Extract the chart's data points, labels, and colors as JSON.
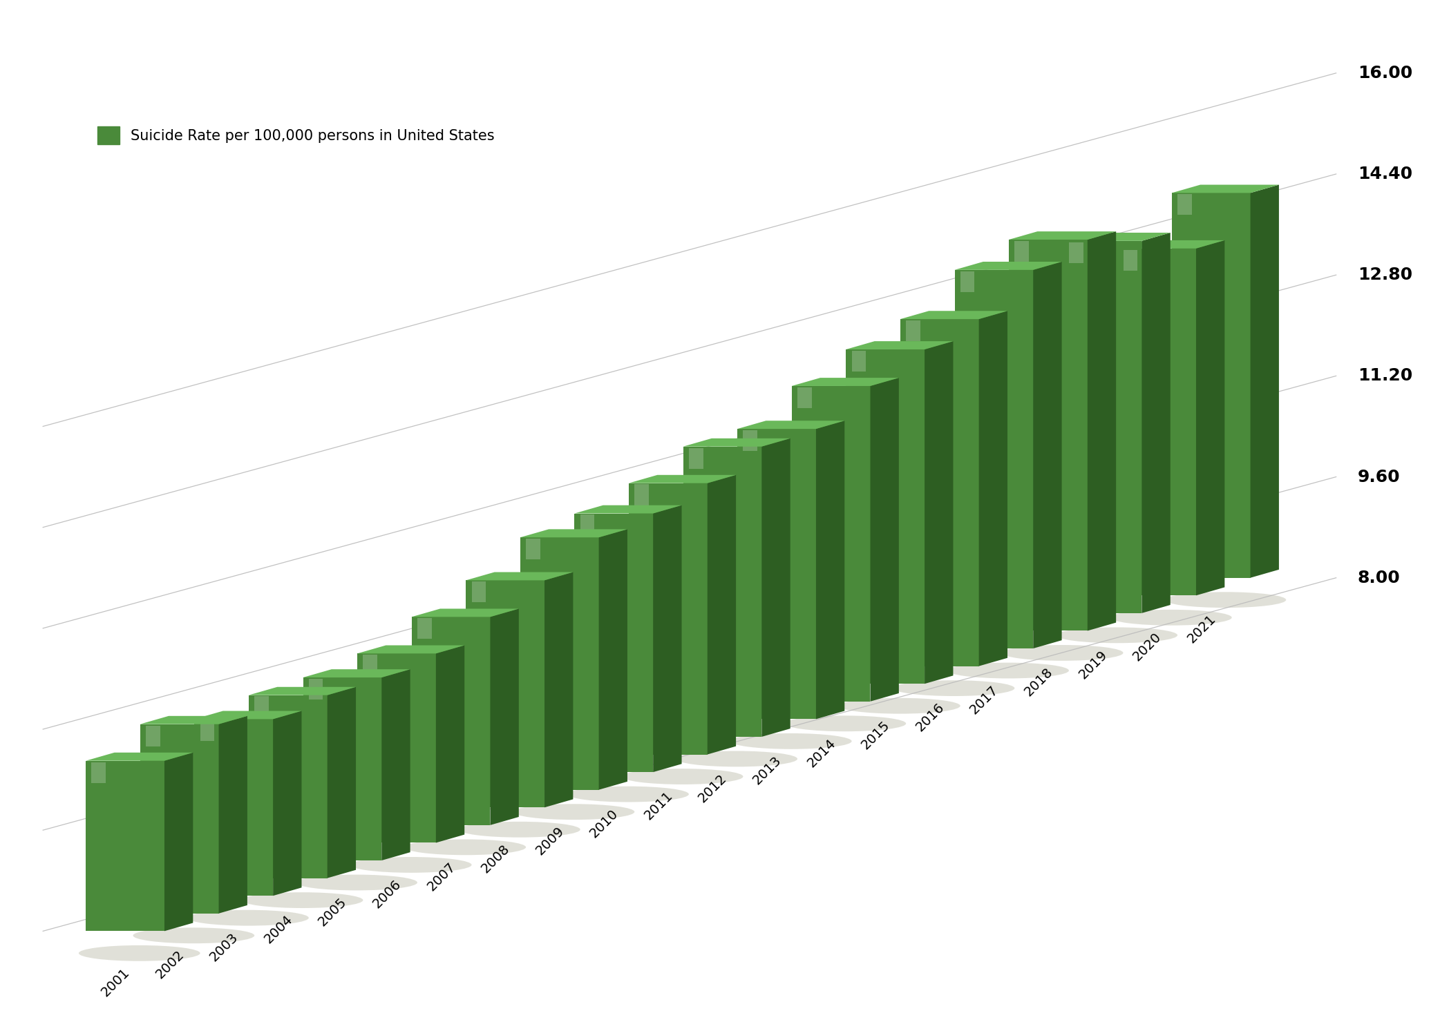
{
  "years": [
    2001,
    2002,
    2003,
    2004,
    2005,
    2006,
    2007,
    2008,
    2009,
    2010,
    2011,
    2012,
    2013,
    2014,
    2015,
    2016,
    2017,
    2018,
    2019,
    2020,
    2021
  ],
  "values": [
    10.7,
    11.0,
    10.8,
    10.9,
    10.9,
    11.0,
    11.3,
    11.6,
    12.0,
    12.1,
    12.3,
    12.6,
    12.6,
    13.0,
    13.3,
    13.5,
    14.0,
    14.2,
    13.9,
    13.5,
    14.1
  ],
  "bar_face_color": "#4a8a3a",
  "bar_side_color": "#2d5e22",
  "bar_top_color": "#6ab85a",
  "shadow_color": "#c8c8b8",
  "background_color": "#ffffff",
  "grid_color": "#bbbbbb",
  "yticks": [
    8.0,
    9.6,
    11.2,
    12.8,
    14.4,
    16.0
  ],
  "ytick_labels": [
    "8.00",
    "9.60",
    "11.20",
    "12.80",
    "14.40",
    "16.00"
  ],
  "legend_label": "Suicide Rate per 100,000 persons in United States",
  "ylim_min": 8.0,
  "ylim_max": 16.0
}
